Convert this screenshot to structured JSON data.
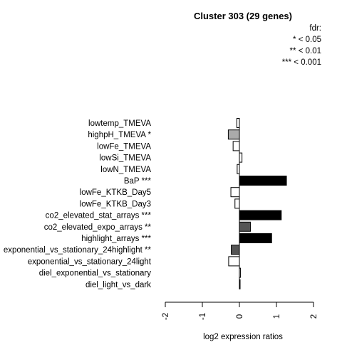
{
  "chart_data": {
    "type": "bar",
    "orientation": "horizontal",
    "title": "Cluster 303 (29 genes)",
    "xlabel": "log2 expression ratios",
    "ylabel": "",
    "xlim": [
      -2,
      2
    ],
    "xticks": [
      "-2",
      "-1",
      "0",
      "1",
      "2"
    ],
    "legend": {
      "placement": "top-right",
      "title": "fdr:",
      "entries": [
        "* < 0.05",
        "** < 0.01",
        "*** < 0.001"
      ]
    },
    "categories": [
      "lowtemp_TMEVA",
      "highpH_TMEVA *",
      "lowFe_TMEVA",
      "lowSi_TMEVA",
      "lowN_TMEVA",
      "BaP ***",
      "lowFe_KTKB_Day5",
      "lowFe_KTKB_Day3",
      "co2_elevated_stat_arrays ***",
      "co2_elevated_expo_arrays **",
      "highlight_arrays ***",
      "exponential_vs_stationary_24highlight **",
      "exponential_vs_stationary_24light",
      "diel_exponential_vs_stationary",
      "diel_light_vs_dark"
    ],
    "values": [
      -0.07,
      -0.3,
      -0.17,
      0.07,
      -0.06,
      1.27,
      -0.23,
      -0.12,
      1.13,
      0.3,
      0.87,
      -0.22,
      -0.29,
      0.03,
      0.01
    ],
    "colors": [
      "#ffffff",
      "#aaaaaa",
      "#ffffff",
      "#ffffff",
      "#ffffff",
      "#000000",
      "#ffffff",
      "#ffffff",
      "#000000",
      "#555555",
      "#000000",
      "#555555",
      "#ffffff",
      "#ffffff",
      "#ffffff"
    ]
  }
}
